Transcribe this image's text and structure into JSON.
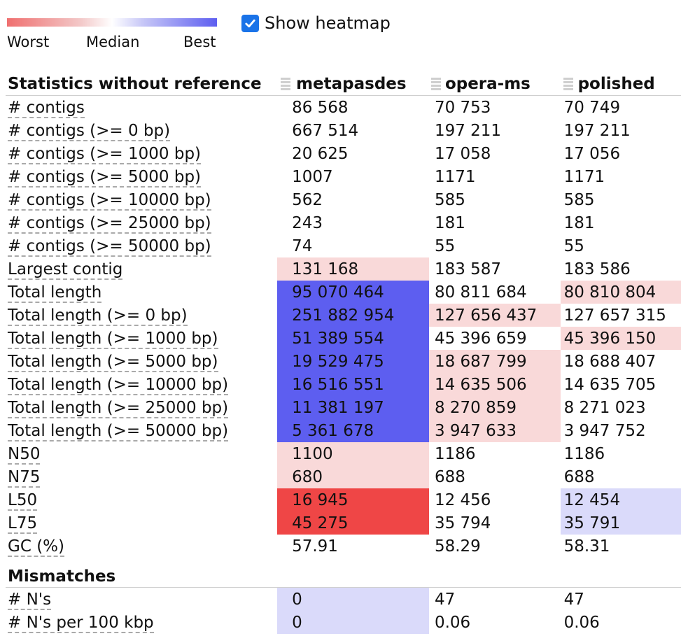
{
  "legend": {
    "worst": "Worst",
    "median": "Median",
    "best": "Best"
  },
  "heatmap_toggle": {
    "label": "Show heatmap",
    "checked": true
  },
  "colors": {
    "worst": "#ef4646",
    "light_worst": "#f9d9d9",
    "best": "#5d5ef0",
    "light_best": "#dadafa"
  },
  "table": {
    "header": [
      "Statistics without reference",
      "metapasdes",
      "opera-ms",
      "polished"
    ],
    "rows": [
      {
        "label": "# contigs",
        "values": [
          "86 568",
          "70 753",
          "70 749"
        ],
        "heat": [
          "",
          "",
          ""
        ]
      },
      {
        "label": "# contigs (>= 0 bp)",
        "values": [
          "667 514",
          "197 211",
          "197 211"
        ],
        "heat": [
          "",
          "",
          ""
        ]
      },
      {
        "label": "# contigs (>= 1000 bp)",
        "values": [
          "20 625",
          "17 058",
          "17 056"
        ],
        "heat": [
          "",
          "",
          ""
        ]
      },
      {
        "label": "# contigs (>= 5000 bp)",
        "values": [
          "1007",
          "1171",
          "1171"
        ],
        "heat": [
          "",
          "",
          ""
        ]
      },
      {
        "label": "# contigs (>= 10000 bp)",
        "values": [
          "562",
          "585",
          "585"
        ],
        "heat": [
          "",
          "",
          ""
        ]
      },
      {
        "label": "# contigs (>= 25000 bp)",
        "values": [
          "243",
          "181",
          "181"
        ],
        "heat": [
          "",
          "",
          ""
        ]
      },
      {
        "label": "# contigs (>= 50000 bp)",
        "values": [
          "74",
          "55",
          "55"
        ],
        "heat": [
          "",
          "",
          ""
        ]
      },
      {
        "label": "Largest contig",
        "values": [
          "131 168",
          "183 587",
          "183 586"
        ],
        "heat": [
          "light_worst",
          "",
          ""
        ]
      },
      {
        "label": "Total length",
        "values": [
          "95 070 464",
          "80 811 684",
          "80 810 804"
        ],
        "heat": [
          "best",
          "",
          "light_worst"
        ]
      },
      {
        "label": "Total length (>= 0 bp)",
        "values": [
          "251 882 954",
          "127 656 437",
          "127 657 315"
        ],
        "heat": [
          "best",
          "light_worst",
          ""
        ]
      },
      {
        "label": "Total length (>= 1000 bp)",
        "values": [
          "51 389 554",
          "45 396 659",
          "45 396 150"
        ],
        "heat": [
          "best",
          "",
          "light_worst"
        ]
      },
      {
        "label": "Total length (>= 5000 bp)",
        "values": [
          "19 529 475",
          "18 687 799",
          "18 688 407"
        ],
        "heat": [
          "best",
          "light_worst",
          ""
        ]
      },
      {
        "label": "Total length (>= 10000 bp)",
        "values": [
          "16 516 551",
          "14 635 506",
          "14 635 705"
        ],
        "heat": [
          "best",
          "light_worst",
          ""
        ]
      },
      {
        "label": "Total length (>= 25000 bp)",
        "values": [
          "11 381 197",
          "8 270 859",
          "8 271 023"
        ],
        "heat": [
          "best",
          "light_worst",
          ""
        ]
      },
      {
        "label": "Total length (>= 50000 bp)",
        "values": [
          "5 361 678",
          "3 947 633",
          "3 947 752"
        ],
        "heat": [
          "best",
          "light_worst",
          ""
        ]
      },
      {
        "label": "N50",
        "values": [
          "1100",
          "1186",
          "1186"
        ],
        "heat": [
          "light_worst",
          "",
          ""
        ]
      },
      {
        "label": "N75",
        "values": [
          "680",
          "688",
          "688"
        ],
        "heat": [
          "light_worst",
          "",
          ""
        ]
      },
      {
        "label": "L50",
        "values": [
          "16 945",
          "12 456",
          "12 454"
        ],
        "heat": [
          "worst",
          "",
          "light_best"
        ]
      },
      {
        "label": "L75",
        "values": [
          "45 275",
          "35 794",
          "35 791"
        ],
        "heat": [
          "worst",
          "",
          "light_best"
        ]
      },
      {
        "label": "GC (%)",
        "values": [
          "57.91",
          "58.29",
          "58.31"
        ],
        "heat": [
          "",
          "",
          ""
        ]
      }
    ],
    "section2": {
      "title": "Mismatches",
      "rows": [
        {
          "label": "# N's",
          "values": [
            "0",
            "47",
            "47"
          ],
          "heat": [
            "light_best",
            "",
            ""
          ]
        },
        {
          "label": "# N's per 100 kbp",
          "values": [
            "0",
            "0.06",
            "0.06"
          ],
          "heat": [
            "light_best",
            "",
            ""
          ]
        }
      ]
    }
  }
}
